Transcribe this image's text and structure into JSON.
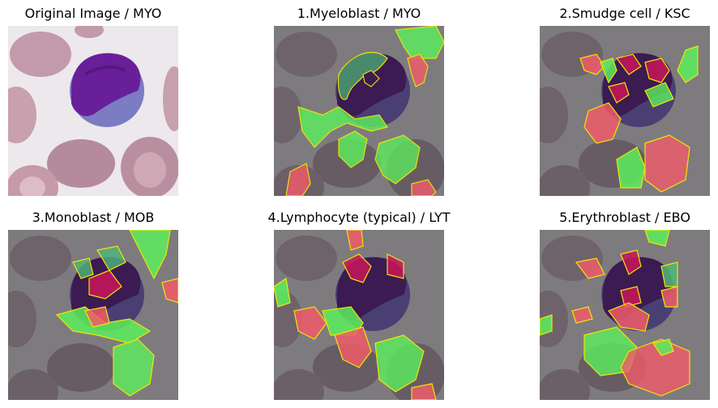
{
  "panels": [
    {
      "title": "Original Image / MYO"
    },
    {
      "title": "1.Myeloblast / MYO"
    },
    {
      "title": "2.Smudge cell / KSC"
    },
    {
      "title": "3.Monoblast / MOB"
    },
    {
      "title": "4.Lymphocyte (typical) / LYT"
    },
    {
      "title": "5.Erythroblast / EBO"
    }
  ],
  "colors": {
    "background_original": "#ece8ec",
    "rbc_original": "#b9909f",
    "nucleus_original": "#6a1f9a",
    "cytoplasm_original": "#7b7cc2",
    "background_gray": "#7e7b7e",
    "rbc_gray": "#675c64",
    "nucleus_gray": "#3c1a52",
    "overlay_positive": "#5cf05c",
    "overlay_negative": "#f05c6a",
    "contour": "#f2e600"
  }
}
